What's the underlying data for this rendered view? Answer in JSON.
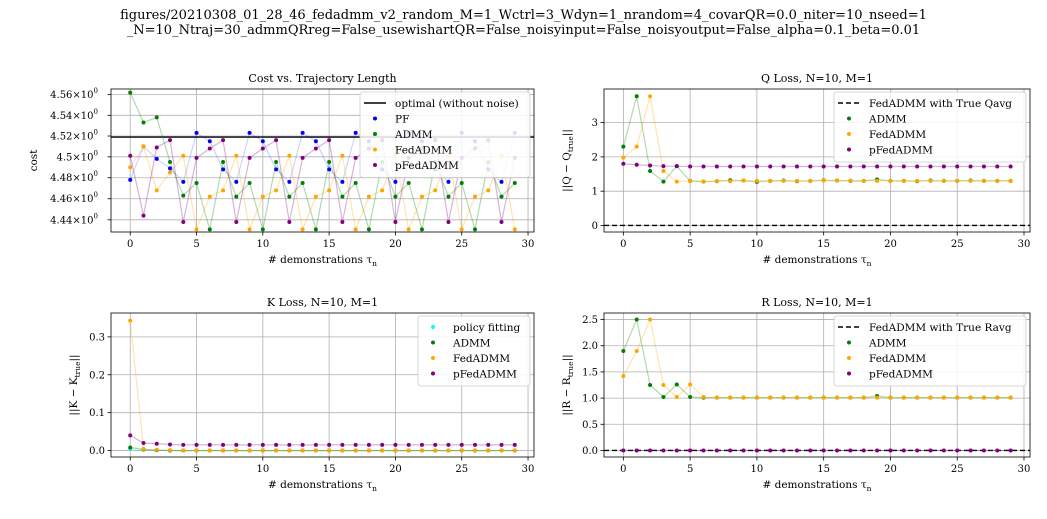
{
  "figure": {
    "title_line1": "figures/20210308_01_28_46_fedadmm_v2_random_M=1_Wctrl=3_Wdyn=1_nrandom=4_covarQR=0.0_niter=10_nseed=1",
    "title_line2": "_N=10_Ntraj=30_admmQRreg=False_usewishartQR=False_noisyinput=False_noisyoutput=False_alpha=0.1_beta=0.01"
  },
  "colors": {
    "PF": "#0000ff",
    "ADMM": "#008000",
    "FedADMM": "#ffa500",
    "pFedADMM": "#800080",
    "policy_fitting": "#00ffff",
    "optimal": "#000000",
    "true_ref": "#000000",
    "grid": "#b0b0b0"
  },
  "chart_data": [
    {
      "type": "line",
      "title": "Cost vs. Trajectory Length",
      "xlabel": "# demonstrations τn",
      "ylabel": "cost",
      "xlim": [
        -1.45,
        30.45
      ],
      "ylim": [
        4.4285,
        4.5655
      ],
      "yscale": "log",
      "xticks": [
        0,
        5,
        10,
        15,
        20,
        25,
        30
      ],
      "yticks": [
        4.44,
        4.46,
        4.48,
        4.5,
        4.52,
        4.54,
        4.56
      ],
      "ytick_labels": [
        {
          "base": "4.44",
          "exp": "0"
        },
        {
          "base": "4.46",
          "exp": "0"
        },
        {
          "base": "4.48",
          "exp": "0"
        },
        {
          "base": "4.5",
          "exp": "0"
        },
        {
          "base": "4.52",
          "exp": "0"
        },
        {
          "base": "4.54",
          "exp": "0"
        },
        {
          "base": "4.56",
          "exp": "0"
        }
      ],
      "grid": true,
      "legend_position": "top-right",
      "hlines": [
        {
          "name": "optimal (without noise)",
          "y": 4.519,
          "style": "solid",
          "color": "#000000"
        }
      ],
      "x": [
        0,
        1,
        2,
        3,
        4,
        5,
        6,
        7,
        8,
        9,
        10,
        11,
        12,
        13,
        14,
        15,
        16,
        17,
        18,
        19,
        20,
        21,
        22,
        23,
        24,
        25,
        26,
        27,
        28,
        29
      ],
      "series": [
        {
          "name": "PF",
          "key": "PF",
          "line_alpha": 0.18,
          "values": [
            4.478,
            4.51,
            4.498,
            4.489,
            4.476,
            4.523,
            4.515,
            4.488,
            4.476,
            4.523,
            4.515,
            4.488,
            4.476,
            4.523,
            4.515,
            4.488,
            4.476,
            4.523,
            4.515,
            4.488,
            4.476,
            4.523,
            4.515,
            4.488,
            4.476,
            4.523,
            4.515,
            4.488,
            4.476,
            4.523
          ]
        },
        {
          "name": "ADMM",
          "key": "ADMM",
          "line_alpha": 0.3,
          "values": [
            4.562,
            4.533,
            4.538,
            4.495,
            4.463,
            4.475,
            4.431,
            4.495,
            4.462,
            4.475,
            4.431,
            4.495,
            4.462,
            4.475,
            4.431,
            4.495,
            4.462,
            4.475,
            4.431,
            4.495,
            4.462,
            4.475,
            4.431,
            4.495,
            4.462,
            4.475,
            4.431,
            4.495,
            4.462,
            4.475
          ]
        },
        {
          "name": "FedADMM",
          "key": "FedADMM",
          "line_alpha": 0.3,
          "values": [
            4.49,
            4.51,
            4.468,
            4.485,
            4.501,
            4.431,
            4.462,
            4.468,
            4.501,
            4.431,
            4.462,
            4.468,
            4.501,
            4.431,
            4.462,
            4.468,
            4.501,
            4.431,
            4.462,
            4.468,
            4.501,
            4.431,
            4.462,
            4.468,
            4.501,
            4.431,
            4.462,
            4.468,
            4.501,
            4.431
          ]
        },
        {
          "name": "pFedADMM",
          "key": "pFedADMM",
          "line_alpha": 0.3,
          "values": [
            4.501,
            4.444,
            4.509,
            4.516,
            4.438,
            4.499,
            4.508,
            4.516,
            4.438,
            4.499,
            4.508,
            4.516,
            4.438,
            4.499,
            4.508,
            4.516,
            4.438,
            4.499,
            4.508,
            4.516,
            4.438,
            4.499,
            4.508,
            4.516,
            4.438,
            4.499,
            4.508,
            4.516,
            4.438,
            4.499
          ]
        }
      ]
    },
    {
      "type": "line",
      "title": "Q Loss, N=10, M=1",
      "xlabel": "# demonstrations τn",
      "ylabel": "||Q − Qtrue||",
      "xlim": [
        -1.45,
        30.45
      ],
      "ylim": [
        -0.19,
        3.98
      ],
      "xticks": [
        0,
        5,
        10,
        15,
        20,
        25,
        30
      ],
      "yticks": [
        0,
        1,
        2,
        3
      ],
      "grid": true,
      "legend_position": "top-right",
      "hlines": [
        {
          "name": "FedADMM with True Qavg",
          "y": 0.0,
          "style": "dashed",
          "color": "#000000"
        }
      ],
      "x": [
        0,
        1,
        2,
        3,
        4,
        5,
        6,
        7,
        8,
        9,
        10,
        11,
        12,
        13,
        14,
        15,
        16,
        17,
        18,
        19,
        20,
        21,
        22,
        23,
        24,
        25,
        26,
        27,
        28,
        29
      ],
      "series": [
        {
          "name": "ADMM",
          "key": "ADMM",
          "line_alpha": 0.3,
          "values": [
            2.3,
            3.77,
            1.59,
            1.28,
            1.73,
            1.3,
            1.28,
            1.29,
            1.32,
            1.31,
            1.27,
            1.3,
            1.31,
            1.29,
            1.3,
            1.32,
            1.31,
            1.3,
            1.3,
            1.34,
            1.3,
            1.3,
            1.29,
            1.31,
            1.3,
            1.3,
            1.31,
            1.3,
            1.3,
            1.3
          ]
        },
        {
          "name": "FedADMM",
          "key": "FedADMM",
          "line_alpha": 0.3,
          "values": [
            1.98,
            2.3,
            3.77,
            1.59,
            1.28,
            1.3,
            1.28,
            1.29,
            1.29,
            1.31,
            1.3,
            1.3,
            1.3,
            1.3,
            1.3,
            1.31,
            1.31,
            1.31,
            1.3,
            1.3,
            1.3,
            1.3,
            1.3,
            1.3,
            1.3,
            1.3,
            1.3,
            1.3,
            1.3,
            1.3
          ]
        },
        {
          "name": "pFedADMM",
          "key": "pFedADMM",
          "line_alpha": 0.3,
          "values": [
            1.8,
            1.77,
            1.75,
            1.73,
            1.73,
            1.72,
            1.72,
            1.72,
            1.72,
            1.72,
            1.72,
            1.72,
            1.72,
            1.72,
            1.72,
            1.72,
            1.72,
            1.72,
            1.72,
            1.72,
            1.72,
            1.72,
            1.72,
            1.72,
            1.72,
            1.72,
            1.72,
            1.72,
            1.72,
            1.72
          ]
        }
      ]
    },
    {
      "type": "line",
      "title": "K Loss, N=10, M=1",
      "xlabel": "# demonstrations τn",
      "ylabel": "||K − Ktrue||",
      "xlim": [
        -1.45,
        30.45
      ],
      "ylim": [
        -0.017,
        0.363
      ],
      "xticks": [
        0,
        5,
        10,
        15,
        20,
        25,
        30
      ],
      "yticks": [
        0.0,
        0.1,
        0.2,
        0.3
      ],
      "grid": true,
      "legend_position": "top-right",
      "hlines": [],
      "x": [
        0,
        1,
        2,
        3,
        4,
        5,
        6,
        7,
        8,
        9,
        10,
        11,
        12,
        13,
        14,
        15,
        16,
        17,
        18,
        19,
        20,
        21,
        22,
        23,
        24,
        25,
        26,
        27,
        28,
        29
      ],
      "series": [
        {
          "name": "policy fitting",
          "key": "policy_fitting",
          "line_alpha": 0.3,
          "values": [
            0.005,
            0.002,
            0.001,
            0.0,
            0.0,
            0.0,
            0.0,
            0.0,
            0.0,
            0.0,
            0.0,
            0.0,
            0.0,
            0.0,
            0.0,
            0.0,
            0.0,
            0.0,
            0.0,
            0.0,
            0.0,
            0.0,
            0.0,
            0.0,
            0.0,
            0.0,
            0.0,
            0.0,
            0.0,
            0.0
          ]
        },
        {
          "name": "ADMM",
          "key": "ADMM",
          "line_alpha": 0.3,
          "values": [
            0.008,
            0.003,
            0.001,
            0.0,
            0.0,
            0.0,
            0.0,
            0.0,
            0.0,
            0.0,
            0.0,
            0.0,
            0.0,
            0.0,
            0.0,
            0.0,
            0.0,
            0.0,
            0.0,
            0.0,
            0.0,
            0.0,
            0.0,
            0.0,
            0.0,
            0.0,
            0.0,
            0.0,
            0.0,
            0.0
          ]
        },
        {
          "name": "FedADMM",
          "key": "FedADMM",
          "line_alpha": 0.3,
          "values": [
            0.343,
            0.004,
            0.002,
            0.001,
            0.0,
            0.0,
            0.0,
            0.0,
            0.0,
            0.0,
            0.0,
            0.0,
            0.0,
            0.0,
            0.0,
            0.0,
            0.0,
            0.0,
            0.0,
            0.0,
            0.0,
            0.0,
            0.0,
            0.0,
            0.0,
            0.0,
            0.0,
            0.0,
            0.0,
            0.0
          ]
        },
        {
          "name": "pFedADMM",
          "key": "pFedADMM",
          "line_alpha": 0.3,
          "values": [
            0.04,
            0.02,
            0.018,
            0.016,
            0.015,
            0.015,
            0.015,
            0.015,
            0.015,
            0.015,
            0.015,
            0.015,
            0.015,
            0.015,
            0.015,
            0.015,
            0.015,
            0.015,
            0.015,
            0.015,
            0.015,
            0.015,
            0.015,
            0.015,
            0.015,
            0.015,
            0.015,
            0.015,
            0.015,
            0.015
          ]
        }
      ]
    },
    {
      "type": "line",
      "title": "R Loss, N=10, M=1",
      "xlabel": "# demonstrations τn",
      "ylabel": "||R − Rtrue||",
      "xlim": [
        -1.45,
        30.45
      ],
      "ylim": [
        -0.125,
        2.625
      ],
      "xticks": [
        0,
        5,
        10,
        15,
        20,
        25,
        30
      ],
      "yticks": [
        0.0,
        0.5,
        1.0,
        1.5,
        2.0,
        2.5
      ],
      "grid": true,
      "legend_position": "top-right",
      "hlines": [
        {
          "name": "FedADMM with True Ravg",
          "y": 0.0,
          "style": "dashed",
          "color": "#000000"
        }
      ],
      "x": [
        0,
        1,
        2,
        3,
        4,
        5,
        6,
        7,
        8,
        9,
        10,
        11,
        12,
        13,
        14,
        15,
        16,
        17,
        18,
        19,
        20,
        21,
        22,
        23,
        24,
        25,
        26,
        27,
        28,
        29
      ],
      "series": [
        {
          "name": "ADMM",
          "key": "ADMM",
          "line_alpha": 0.3,
          "values": [
            1.9,
            2.5,
            1.25,
            1.02,
            1.26,
            1.02,
            1.01,
            1.01,
            1.01,
            1.01,
            1.01,
            1.01,
            1.01,
            1.01,
            1.01,
            1.01,
            1.01,
            1.01,
            1.01,
            1.04,
            1.01,
            1.01,
            1.01,
            1.01,
            1.01,
            1.01,
            1.01,
            1.01,
            1.01,
            1.01
          ]
        },
        {
          "name": "FedADMM",
          "key": "FedADMM",
          "line_alpha": 0.3,
          "values": [
            1.42,
            1.9,
            2.5,
            1.25,
            1.02,
            1.26,
            1.02,
            1.01,
            1.01,
            1.01,
            1.01,
            1.01,
            1.01,
            1.01,
            1.01,
            1.01,
            1.01,
            1.01,
            1.01,
            1.01,
            1.01,
            1.01,
            1.01,
            1.01,
            1.01,
            1.01,
            1.01,
            1.01,
            1.01,
            1.01
          ]
        },
        {
          "name": "pFedADMM",
          "key": "pFedADMM",
          "line_alpha": 0.3,
          "values": [
            0.0,
            0.0,
            0.0,
            0.0,
            0.0,
            0.0,
            0.0,
            0.0,
            0.0,
            0.0,
            0.0,
            0.0,
            0.0,
            0.0,
            0.0,
            0.0,
            0.0,
            0.0,
            0.0,
            0.0,
            0.0,
            0.0,
            0.0,
            0.0,
            0.0,
            0.0,
            0.0,
            0.0,
            0.0,
            0.0
          ]
        }
      ]
    }
  ]
}
